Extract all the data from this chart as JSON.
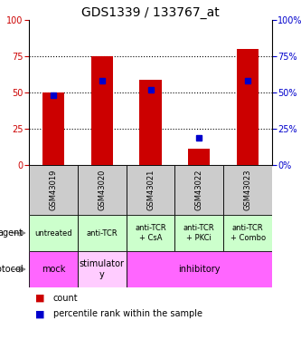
{
  "title": "GDS1339 / 133767_at",
  "samples": [
    "GSM43019",
    "GSM43020",
    "GSM43021",
    "GSM43022",
    "GSM43023"
  ],
  "red_bars": [
    50,
    75,
    59,
    11,
    80
  ],
  "blue_squares": [
    48,
    58,
    52,
    19,
    58
  ],
  "ylim": [
    0,
    100
  ],
  "yticks": [
    0,
    25,
    50,
    75,
    100
  ],
  "bar_color": "#cc0000",
  "square_color": "#0000cc",
  "agent_labels": [
    "untreated",
    "anti-TCR",
    "anti-TCR\n+ CsA",
    "anti-TCR\n+ PKCi",
    "anti-TCR\n+ Combo"
  ],
  "agent_bg": "#ccffcc",
  "protocol_bg_mock": "#ff66ff",
  "protocol_bg_stim": "#ffccff",
  "protocol_bg_inhib": "#ff66ff",
  "sample_bg": "#cccccc",
  "bar_width": 0.45,
  "left_tick_color": "#cc0000",
  "right_tick_color": "#0000cc",
  "title_fontsize": 10,
  "tick_fontsize": 7,
  "sample_fontsize": 6,
  "agent_fontsize": 6,
  "protocol_fontsize": 7,
  "legend_fontsize": 7,
  "label_fontsize": 7,
  "arrow_color": "#888888"
}
